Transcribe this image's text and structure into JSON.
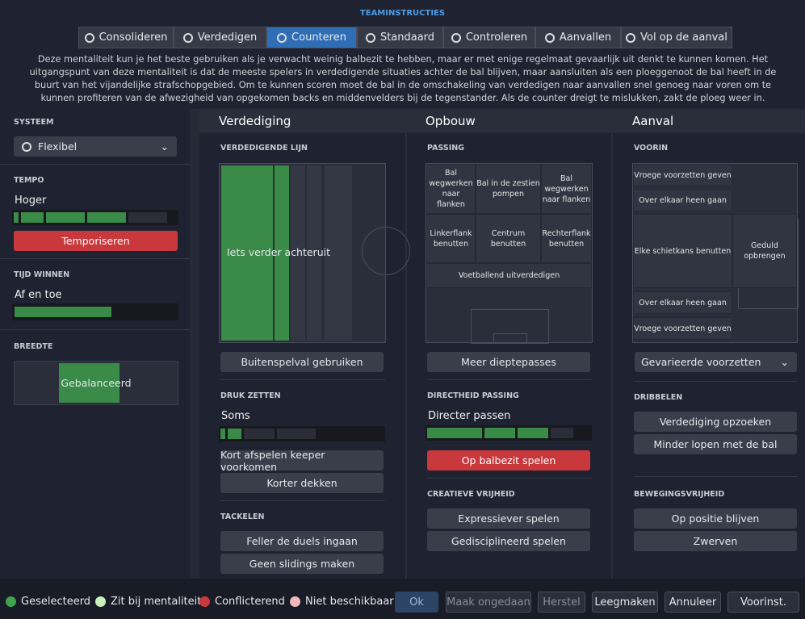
{
  "header": {
    "title": "TEAMINSTRUCTIES",
    "description": "Deze mentaliteit kun je het beste gebruiken als je verwacht weinig balbezit te hebben, maar er met enige regelmaat gevaarlijk uit denkt te kunnen komen. Het uitgangspunt van deze mentaliteit is dat de meeste spelers in verdedigende situaties achter de bal blijven, maar aansluiten als een ploeggenoot de bal heeft in de buurt van het vijandelijke strafschopgebied. Om te kunnen scoren moet de bal in de omschakeling van verdedigen naar aanvallen snel genoeg naar voren om te kunnen profiteren van de afwezigheid van opgekomen backs en middenvelders bij de tegenstander. Als de counter dreigt te mislukken, zakt de ploeg weer in."
  },
  "tabs": [
    {
      "label": "Consolideren",
      "active": false
    },
    {
      "label": "Verdedigen",
      "active": false
    },
    {
      "label": "Counteren",
      "active": true
    },
    {
      "label": "Standaard",
      "active": false
    },
    {
      "label": "Controleren",
      "active": false
    },
    {
      "label": "Aanvallen",
      "active": false
    },
    {
      "label": "Vol op de aanval",
      "active": false
    }
  ],
  "sidebar": {
    "system": {
      "label": "SYSTEEM",
      "value": "Flexibel"
    },
    "tempo": {
      "label": "TEMPO",
      "value": "Hoger",
      "button": "Temporiseren"
    },
    "time_wasting": {
      "label": "TIJD WINNEN",
      "value": "Af en toe"
    },
    "width": {
      "label": "BREEDTE",
      "value": "Gebalanceerd"
    }
  },
  "defence": {
    "title": "Verdediging",
    "line_label": "VERDEDIGENDE LIJN",
    "line_value": "Iets verder achteruit",
    "offside_button": "Buitenspelval gebruiken",
    "pressing_label": "DRUK ZETTEN",
    "pressing_value": "Soms",
    "pressing_buttons": [
      "Kort afspelen keeper voorkomen",
      "Korter dekken"
    ],
    "tackling_label": "TACKELEN",
    "tackling_buttons": [
      "Feller de duels ingaan",
      "Geen slidings maken"
    ]
  },
  "buildup": {
    "title": "Opbouw",
    "passing_label": "PASSING",
    "zones": [
      "Bal wegwerken naar flanken",
      "Bal in de zestien pompen",
      "Bal wegwerken naar flanken",
      "Linkerflank benutten",
      "Centrum benutten",
      "Rechterflank benutten",
      "Voetballend uitverdedigen"
    ],
    "button": "Meer dieptepasses",
    "directness_label": "DIRECTHEID PASSING",
    "directness_value": "Directer passen",
    "directness_button": "Op balbezit spelen",
    "creative_label": "CREATIEVE VRIJHEID",
    "creative_buttons": [
      "Expressiever spelen",
      "Gedisciplineerd spelen"
    ]
  },
  "attack": {
    "title": "Aanval",
    "final_third_label": "VOORIN",
    "zones": [
      "Vroege voorzetten geven",
      "Over elkaar heen gaan",
      "Elke schietkans benutten",
      "Geduld opbrengen",
      "Over elkaar heen gaan",
      "Vroege voorzetten geven"
    ],
    "crossing_dropdown": "Gevarieerde voorzetten",
    "dribbling_label": "DRIBBELEN",
    "dribbling_buttons": [
      "Verdediging opzoeken",
      "Minder lopen met de bal"
    ],
    "movement_label": "BEWEGINGSVRIJHEID",
    "movement_buttons": [
      "Op positie blijven",
      "Zwerven"
    ]
  },
  "footer": {
    "legend": [
      {
        "label": "Geselecteerd",
        "color": "#3fa34d"
      },
      {
        "label": "Zit bij mentaliteit",
        "color": "#c9efbd"
      },
      {
        "label": "Conflicterend",
        "color": "#c8383c"
      },
      {
        "label": "Niet beschikbaar",
        "color": "#f1b9b9"
      }
    ],
    "buttons": [
      "Ok",
      "Maak ongedaan",
      "Herstel",
      "Leegmaken",
      "Annuleer",
      "Voorinst."
    ]
  }
}
